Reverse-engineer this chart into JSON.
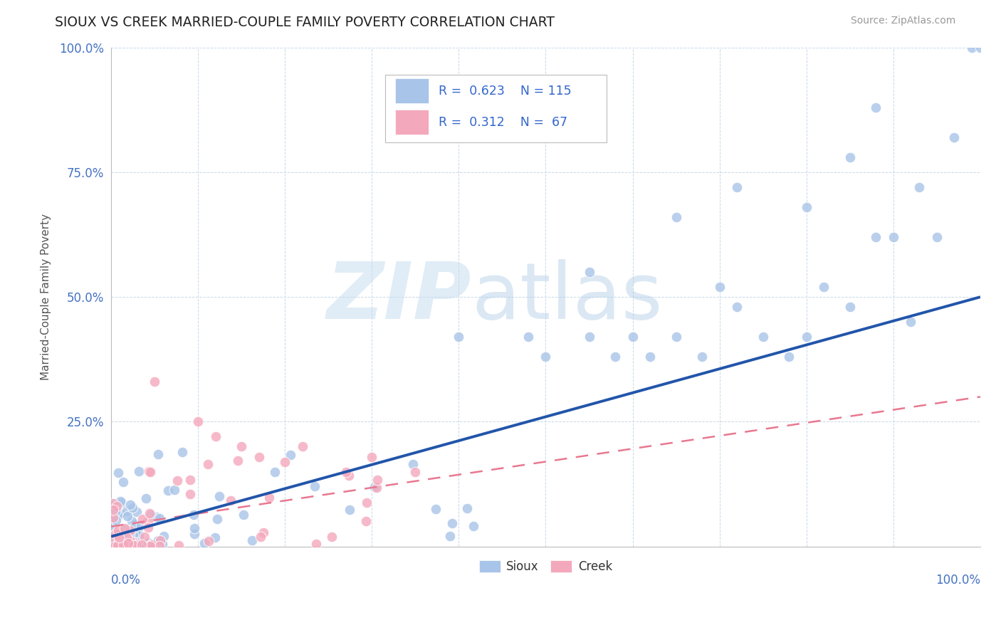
{
  "title": "SIOUX VS CREEK MARRIED-COUPLE FAMILY POVERTY CORRELATION CHART",
  "source": "Source: ZipAtlas.com",
  "ylabel": "Married-Couple Family Poverty",
  "watermark_zip": "ZIP",
  "watermark_atlas": "atlas",
  "sioux_R": 0.623,
  "sioux_N": 115,
  "creek_R": 0.312,
  "creek_N": 67,
  "sioux_color": "#a8c4e8",
  "creek_color": "#f4a8bc",
  "sioux_line_color": "#2255aa",
  "creek_line_color": "#e87890",
  "xlim": [
    0.0,
    1.0
  ],
  "ylim": [
    0.0,
    1.0
  ],
  "yticks": [
    0.0,
    0.25,
    0.5,
    0.75,
    1.0
  ],
  "ytick_labels": [
    "",
    "25.0%",
    "50.0%",
    "75.0%",
    "100.0%"
  ],
  "xtick_labels": [
    "0.0%",
    "100.0%"
  ],
  "grid_color": "#c8d8e8",
  "background_color": "#ffffff",
  "title_color": "#222222",
  "tick_label_color": "#4472c4",
  "sioux_line_end_y": 0.5,
  "creek_line_end_y": 0.3
}
